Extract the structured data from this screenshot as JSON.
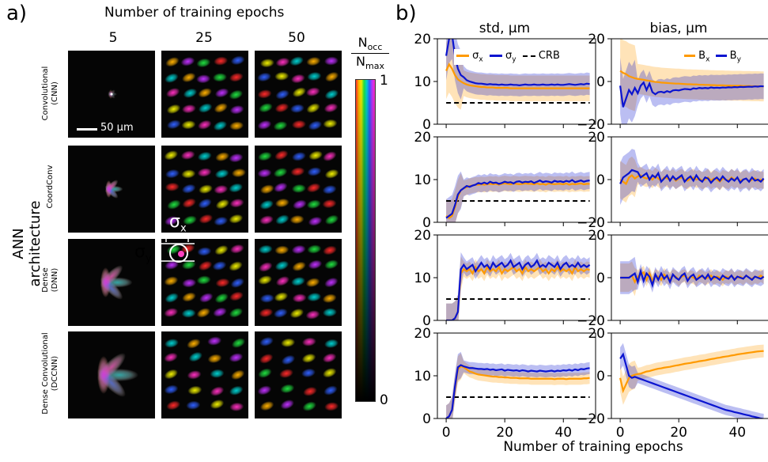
{
  "panel_a": {
    "label": "a)",
    "column_header": "Number of training epochs",
    "epochs": [
      "5",
      "25",
      "50"
    ],
    "y_title": "ANN architecture",
    "architectures": [
      {
        "name": "Convolutional",
        "abbr": "(CNN)"
      },
      {
        "name": "CoordConv",
        "abbr": ""
      },
      {
        "name": "Dense",
        "abbr": "(DNN)"
      },
      {
        "name": "Dense Convolutional",
        "abbr": "(DCCNN)"
      }
    ],
    "scale_bar": "50 μm",
    "sigma_x": "σ",
    "sigma_x_sub": "x",
    "sigma_y": "σ",
    "sigma_y_sub": "y",
    "colorbar": {
      "num": "N",
      "num_sub": "occ",
      "den": "N",
      "den_sub": "max",
      "top": "1",
      "bottom": "0"
    },
    "colors": [
      "#ff2a2a",
      "#ffb000",
      "#f0f000",
      "#20e040",
      "#00d0d0",
      "#3060ff",
      "#c030ff",
      "#ff30c0"
    ]
  },
  "panel_b": {
    "label": "b)",
    "std_title": "std, μm",
    "bias_title": "bias, μm",
    "xlabel": "Number of training epochs",
    "legend_std": [
      {
        "sym": "σ",
        "sub": "x"
      },
      {
        "sym": "σ",
        "sub": "y"
      },
      {
        "sym": "CRB",
        "sub": ""
      }
    ],
    "legend_bias": [
      {
        "sym": "B",
        "sub": "x"
      },
      {
        "sym": "B",
        "sub": "y"
      }
    ],
    "x_ticks": [
      "0",
      "20",
      "40"
    ]
  },
  "chart_data": [
    {
      "type": "line",
      "row": "CNN",
      "title": "std, μm",
      "ylim": [
        0,
        20
      ],
      "yticks": [
        0,
        10,
        20
      ],
      "xlim": [
        -3,
        51
      ],
      "crb": 5,
      "series": [
        {
          "name": "σx",
          "color": "#ff9a00",
          "values": [
            12.5,
            14.0,
            13.0,
            11.5,
            10.5,
            10.0,
            9.6,
            9.3,
            9.1,
            9.0,
            8.9,
            8.8,
            8.7,
            8.7,
            8.6,
            8.6,
            8.6,
            8.5,
            8.5,
            8.5,
            8.5,
            8.5,
            8.4,
            8.4,
            8.4,
            8.4,
            8.4,
            8.4,
            8.4,
            8.4,
            8.4,
            8.4,
            8.4,
            8.4,
            8.4,
            8.4,
            8.4,
            8.4,
            8.4,
            8.4,
            8.4,
            8.4,
            8.4,
            8.4,
            8.4,
            8.4,
            8.4,
            8.4,
            8.4,
            8.4
          ],
          "band": 3.0
        },
        {
          "name": "σy",
          "color": "#0a14d0",
          "values": [
            16.0,
            20.0,
            21.0,
            16.0,
            13.0,
            11.5,
            11.0,
            10.3,
            10.0,
            9.8,
            9.6,
            9.5,
            9.5,
            9.4,
            9.3,
            9.4,
            9.3,
            9.3,
            9.2,
            9.3,
            9.2,
            9.2,
            9.3,
            9.2,
            9.2,
            9.1,
            9.2,
            9.3,
            9.2,
            9.2,
            9.3,
            9.2,
            9.2,
            9.3,
            9.2,
            9.2,
            9.3,
            9.2,
            9.3,
            9.2,
            9.2,
            9.3,
            9.4,
            9.3,
            9.2,
            9.3,
            9.4,
            9.3,
            9.5,
            9.4
          ],
          "band": 2.6
        }
      ]
    },
    {
      "type": "line",
      "row": "CNN",
      "title": "bias, μm",
      "ylim": [
        -20,
        20
      ],
      "yticks": [
        -20,
        0,
        20
      ],
      "xlim": [
        -3,
        51
      ],
      "series": [
        {
          "name": "Bx",
          "color": "#ff9a00",
          "values": [
            5.0,
            4.0,
            3.5,
            2.5,
            2.0,
            1.5,
            1.2,
            1.0,
            0.8,
            0.5,
            0.3,
            0.0,
            -0.2,
            -0.3,
            -0.5,
            -0.6,
            -0.7,
            -0.8,
            -0.9,
            -1.0,
            -1.0,
            -1.1,
            -1.2,
            -1.3,
            -1.3,
            -1.4,
            -1.4,
            -1.5,
            -1.5,
            -1.6,
            -1.6,
            -1.7,
            -1.7,
            -1.8,
            -1.8,
            -1.8,
            -1.9,
            -1.9,
            -2.0,
            -2.0,
            -2.0,
            -2.0,
            -2.1,
            -2.1,
            -2.1,
            -2.2,
            -2.2,
            -2.2,
            -2.3,
            -2.3
          ],
          "band": 7.0
        },
        {
          "name": "By",
          "color": "#0a14d0",
          "values": [
            -2.0,
            -12.0,
            -8.0,
            -4.0,
            -6.0,
            -3.0,
            -5.5,
            -2.0,
            -0.5,
            -4.0,
            -1.0,
            -5.0,
            -6.0,
            -5.0,
            -4.8,
            -5.2,
            -4.5,
            -5.0,
            -4.2,
            -4.0,
            -4.2,
            -3.8,
            -3.5,
            -3.6,
            -3.8,
            -3.2,
            -3.4,
            -3.0,
            -3.2,
            -3.0,
            -3.2,
            -2.8,
            -3.0,
            -2.9,
            -3.0,
            -2.8,
            -2.9,
            -2.7,
            -2.8,
            -2.6,
            -2.7,
            -2.5,
            -2.6,
            -2.5,
            -2.4,
            -2.5,
            -2.3,
            -2.4,
            -2.2,
            -2.3
          ],
          "band": 6.0
        }
      ]
    },
    {
      "type": "line",
      "row": "CoordConv",
      "title": "std, μm",
      "ylim": [
        0,
        20
      ],
      "yticks": [
        0,
        10,
        20
      ],
      "xlim": [
        -3,
        51
      ],
      "crb": 5,
      "series": [
        {
          "name": "σx",
          "color": "#ff9a00",
          "values": [
            1.5,
            1.0,
            1.5,
            3.5,
            6.0,
            7.5,
            8.0,
            8.2,
            8.5,
            8.6,
            8.8,
            8.8,
            8.9,
            8.8,
            8.9,
            9.0,
            8.9,
            9.0,
            8.8,
            9.0,
            9.1,
            9.0,
            8.9,
            9.1,
            9.0,
            8.9,
            9.0,
            9.1,
            9.0,
            9.0,
            8.9,
            9.1,
            8.9,
            9.0,
            8.8,
            9.1,
            9.0,
            8.9,
            9.0,
            9.0,
            8.9,
            9.1,
            8.8,
            9.0,
            8.9,
            9.0,
            9.1,
            8.9,
            9.0,
            9.0
          ],
          "band": 1.8
        },
        {
          "name": "σy",
          "color": "#0a14d0",
          "values": [
            1.0,
            1.5,
            2.0,
            4.0,
            6.5,
            7.5,
            8.0,
            8.5,
            8.3,
            8.6,
            8.8,
            9.2,
            9.0,
            9.3,
            9.0,
            9.5,
            9.2,
            9.3,
            9.0,
            9.2,
            9.5,
            9.3,
            9.4,
            9.1,
            9.5,
            9.6,
            9.3,
            9.5,
            9.4,
            9.6,
            9.2,
            9.5,
            9.8,
            9.4,
            9.6,
            9.5,
            9.3,
            9.7,
            9.5,
            9.6,
            9.4,
            9.7,
            9.5,
            9.9,
            9.4,
            9.6,
            9.8,
            9.5,
            9.7,
            9.8
          ],
          "band": 2.0
        }
      ]
    },
    {
      "type": "line",
      "row": "CoordConv",
      "title": "bias, μm",
      "ylim": [
        -20,
        20
      ],
      "yticks": [
        -20,
        0,
        20
      ],
      "xlim": [
        -3,
        51
      ],
      "series": [
        {
          "name": "Bx",
          "color": "#ff9a00",
          "values": [
            0.0,
            -1.0,
            -2.0,
            1.0,
            2.0,
            0.5,
            1.5,
            2.0,
            1.0,
            0.5,
            1.0,
            0.0,
            1.5,
            0.5,
            -0.5,
            1.0,
            0.5,
            0.0,
            1.0,
            -0.5,
            0.5,
            1.0,
            0.0,
            -0.5,
            0.5,
            1.0,
            0.0,
            0.5,
            -0.5,
            0.0,
            1.0,
            -0.5,
            0.5,
            0.0,
            -1.0,
            0.5,
            0.0,
            -0.5,
            1.0,
            0.0,
            0.5,
            -0.5,
            0.0,
            0.5,
            -1.0,
            0.0,
            0.5,
            -0.5,
            0.0,
            -0.5
          ],
          "band": 4.0
        },
        {
          "name": "By",
          "color": "#0a14d0",
          "values": [
            -2.0,
            1.0,
            2.0,
            3.0,
            4.5,
            4.0,
            3.5,
            1.0,
            2.0,
            3.0,
            0.0,
            2.0,
            1.0,
            3.0,
            -1.0,
            0.5,
            2.0,
            -0.5,
            1.5,
            0.0,
            1.0,
            2.0,
            -1.0,
            0.5,
            1.5,
            -0.5,
            2.0,
            0.0,
            -1.0,
            1.0,
            0.5,
            -1.5,
            0.0,
            1.0,
            -0.5,
            1.5,
            0.0,
            -1.0,
            0.5,
            -0.5,
            1.0,
            -1.5,
            0.0,
            0.5,
            -1.0,
            1.0,
            -0.5,
            0.0,
            -1.0,
            0.5
          ],
          "band": 4.5
        }
      ]
    },
    {
      "type": "line",
      "row": "Dense",
      "title": "std, μm",
      "ylim": [
        0,
        20
      ],
      "yticks": [
        0,
        10,
        20
      ],
      "xlim": [
        -3,
        51
      ],
      "crb": 5,
      "series": [
        {
          "name": "σx",
          "color": "#ff9a00",
          "values": [
            0.0,
            0.0,
            0.0,
            0.5,
            2.0,
            11.0,
            12.0,
            11.5,
            12.0,
            11.0,
            12.5,
            11.5,
            12.0,
            11.0,
            12.5,
            11.5,
            12.0,
            11.5,
            12.5,
            11.0,
            12.0,
            11.5,
            12.0,
            12.5,
            11.5,
            12.0,
            11.0,
            12.5,
            11.5,
            12.0,
            11.5,
            12.0,
            12.5,
            11.5,
            12.0,
            11.0,
            12.0,
            11.5,
            12.5,
            11.5,
            12.0,
            11.5,
            12.0,
            11.0,
            12.5,
            11.5,
            12.0,
            11.5,
            12.0,
            11.8
          ],
          "band": 1.8
        },
        {
          "name": "σy",
          "color": "#0a14d0",
          "values": [
            0.0,
            0.0,
            0.0,
            0.5,
            2.0,
            12.0,
            13.0,
            12.0,
            12.5,
            13.0,
            11.5,
            12.5,
            13.5,
            12.5,
            13.0,
            12.0,
            13.5,
            12.5,
            13.0,
            13.5,
            12.5,
            13.0,
            14.0,
            12.5,
            13.0,
            13.5,
            12.0,
            13.0,
            13.5,
            12.5,
            13.0,
            14.0,
            12.5,
            13.0,
            12.5,
            13.5,
            13.0,
            12.5,
            13.5,
            12.0,
            13.0,
            13.5,
            12.5,
            13.0,
            12.5,
            13.5,
            12.5,
            13.0,
            12.5,
            13.0
          ],
          "band": 1.8
        }
      ]
    },
    {
      "type": "line",
      "row": "Dense",
      "title": "bias, μm",
      "ylim": [
        -20,
        20
      ],
      "yticks": [
        -20,
        0,
        20
      ],
      "xlim": [
        -3,
        51
      ],
      "series": [
        {
          "name": "Bx",
          "color": "#ff9a00",
          "values": [
            0.0,
            0.0,
            0.0,
            0.0,
            1.0,
            -2.0,
            0.5,
            1.5,
            2.5,
            -1.0,
            2.0,
            -1.5,
            1.0,
            0.5,
            -1.0,
            1.5,
            0.0,
            -0.5,
            1.0,
            0.5,
            -1.0,
            0.5,
            1.0,
            -0.5,
            0.5,
            0.0,
            -1.0,
            1.0,
            0.5,
            -0.5,
            0.0,
            1.0,
            -0.5,
            0.5,
            0.0,
            -1.0,
            0.5,
            0.0,
            1.0,
            -0.5,
            0.0,
            0.5,
            -0.5,
            1.0,
            0.0,
            -0.5,
            0.5,
            0.0,
            1.0,
            0.0
          ],
          "band": 3.0
        },
        {
          "name": "By",
          "color": "#0a14d0",
          "values": [
            0.0,
            0.0,
            0.0,
            0.0,
            1.0,
            2.0,
            -2.0,
            3.0,
            -1.5,
            2.0,
            0.5,
            -3.5,
            1.5,
            -1.0,
            2.0,
            -0.5,
            1.0,
            -2.0,
            1.5,
            0.0,
            -1.0,
            1.0,
            2.0,
            -1.5,
            0.5,
            1.5,
            -1.0,
            0.0,
            1.0,
            -0.5,
            1.5,
            -1.0,
            0.5,
            0.0,
            -1.0,
            1.0,
            0.0,
            -0.5,
            1.0,
            -1.0,
            0.5,
            0.0,
            -0.5,
            1.0,
            0.0,
            -1.0,
            0.5,
            0.0,
            -0.5,
            0.5
          ],
          "band": 3.5
        }
      ]
    },
    {
      "type": "line",
      "row": "DCCNN",
      "title": "std, μm",
      "ylim": [
        0,
        20
      ],
      "yticks": [
        0,
        10,
        20
      ],
      "xlim": [
        -3,
        51
      ],
      "crb": 5,
      "series": [
        {
          "name": "σx",
          "color": "#ff9a00",
          "values": [
            0.0,
            0.5,
            2.0,
            7.0,
            11.5,
            12.2,
            12.0,
            11.5,
            11.0,
            10.8,
            10.5,
            10.3,
            10.2,
            10.1,
            10.0,
            9.9,
            9.8,
            9.8,
            9.7,
            9.7,
            9.6,
            9.6,
            9.5,
            9.5,
            9.5,
            9.4,
            9.4,
            9.4,
            9.4,
            9.3,
            9.3,
            9.3,
            9.3,
            9.3,
            9.3,
            9.3,
            9.3,
            9.2,
            9.3,
            9.3,
            9.3,
            9.2,
            9.3,
            9.3,
            9.3,
            9.3,
            9.3,
            9.4,
            9.4,
            9.5
          ],
          "band": 1.4
        },
        {
          "name": "σy",
          "color": "#0a14d0",
          "values": [
            0.0,
            0.5,
            2.0,
            7.5,
            12.0,
            12.5,
            12.2,
            12.0,
            11.8,
            11.8,
            11.7,
            11.6,
            11.6,
            11.5,
            11.6,
            11.4,
            11.5,
            11.3,
            11.4,
            11.5,
            11.2,
            11.4,
            11.3,
            11.2,
            11.3,
            11.1,
            11.3,
            11.2,
            11.0,
            11.2,
            11.1,
            11.0,
            11.2,
            11.1,
            11.0,
            11.1,
            11.2,
            11.0,
            11.2,
            11.1,
            11.3,
            11.2,
            11.4,
            11.2,
            11.5,
            11.3,
            11.6,
            11.5,
            11.7,
            11.8
          ],
          "band": 1.4
        }
      ]
    },
    {
      "type": "line",
      "row": "DCCNN",
      "title": "bias, μm",
      "ylim": [
        -20,
        20
      ],
      "yticks": [
        -20,
        0,
        20
      ],
      "xlim": [
        -3,
        51
      ],
      "series": [
        {
          "name": "Bx",
          "color": "#ff9a00",
          "values": [
            -1.0,
            -7.0,
            -4.0,
            -1.0,
            0.0,
            0.5,
            0.8,
            1.0,
            1.5,
            2.0,
            2.2,
            2.6,
            3.0,
            3.3,
            3.5,
            3.8,
            4.0,
            4.2,
            4.5,
            4.8,
            5.0,
            5.3,
            5.6,
            5.8,
            6.0,
            6.3,
            6.5,
            6.8,
            7.0,
            7.2,
            7.5,
            7.8,
            8.0,
            8.3,
            8.5,
            8.8,
            9.0,
            9.2,
            9.5,
            9.7,
            10.0,
            10.2,
            10.4,
            10.6,
            10.8,
            11.0,
            11.2,
            11.4,
            11.5,
            11.6
          ],
          "band": 3.0
        },
        {
          "name": "By",
          "color": "#0a14d0",
          "values": [
            8.0,
            10.0,
            5.0,
            0.0,
            -1.0,
            -0.5,
            -1.0,
            -1.5,
            -2.0,
            -2.5,
            -3.0,
            -3.5,
            -4.0,
            -4.5,
            -5.0,
            -5.5,
            -6.0,
            -6.5,
            -7.0,
            -7.5,
            -8.0,
            -8.5,
            -9.0,
            -9.5,
            -10.0,
            -10.5,
            -11.0,
            -11.5,
            -12.0,
            -12.5,
            -13.0,
            -13.5,
            -14.0,
            -14.5,
            -15.0,
            -15.5,
            -16.0,
            -16.3,
            -16.6,
            -17.0,
            -17.3,
            -17.6,
            -18.0,
            -18.3,
            -18.6,
            -19.0,
            -19.3,
            -19.6,
            -20.0,
            -20.2
          ],
          "band": 2.4
        }
      ]
    }
  ]
}
